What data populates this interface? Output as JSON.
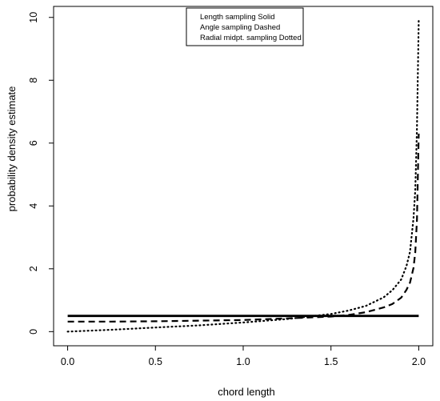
{
  "chart_data": {
    "type": "line",
    "xlabel": "chord length",
    "ylabel": "probability density estimate",
    "xlim": [
      -0.08,
      2.08
    ],
    "ylim": [
      -0.45,
      10.35
    ],
    "xticks": [
      "0.0",
      "0.5",
      "1.0",
      "1.5",
      "2.0"
    ],
    "yticks": [
      "0",
      "2",
      "4",
      "6",
      "8",
      "10"
    ],
    "legend": {
      "placement": "top-center",
      "entries": [
        "Length sampling Solid",
        "Angle sampling Dashed",
        "Radial midpt. sampling Dotted"
      ]
    },
    "series": [
      {
        "style": "solid",
        "x": [
          0,
          0.5,
          1.0,
          1.5,
          2.0
        ],
        "y": [
          0.5,
          0.5,
          0.5,
          0.5,
          0.5
        ]
      },
      {
        "style": "dashed",
        "x": [
          0,
          0.25,
          0.5,
          0.75,
          1.0,
          1.25,
          1.5,
          1.6,
          1.7,
          1.8,
          1.85,
          1.9,
          1.93,
          1.95,
          1.97,
          1.98,
          1.99,
          2.0
        ],
        "y": [
          0.32,
          0.32,
          0.33,
          0.35,
          0.37,
          0.42,
          0.48,
          0.53,
          0.62,
          0.77,
          0.88,
          1.08,
          1.33,
          1.56,
          2.03,
          2.53,
          3.56,
          6.3
        ]
      },
      {
        "style": "dotted",
        "x": [
          0,
          0.25,
          0.5,
          0.75,
          1.0,
          1.25,
          1.5,
          1.6,
          1.7,
          1.8,
          1.85,
          1.9,
          1.93,
          1.95,
          1.97,
          1.98,
          1.99,
          2.0
        ],
        "y": [
          0.0,
          0.06,
          0.13,
          0.2,
          0.29,
          0.4,
          0.56,
          0.67,
          0.82,
          1.09,
          1.32,
          1.66,
          2.09,
          2.54,
          3.61,
          4.51,
          6.46,
          9.9
        ]
      }
    ]
  }
}
